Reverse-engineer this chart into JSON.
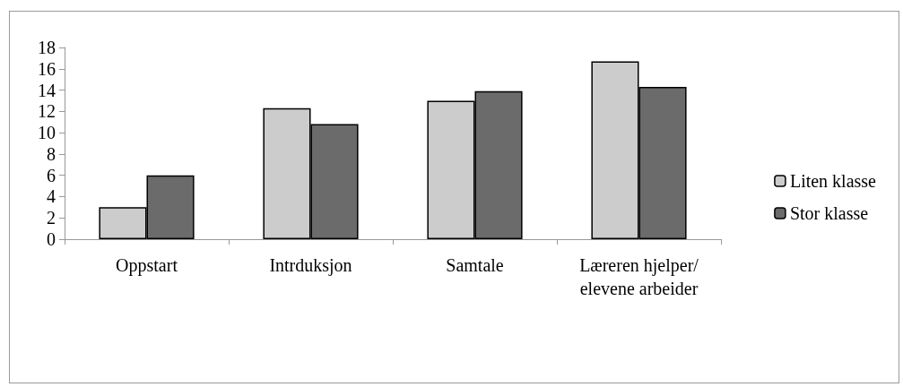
{
  "chart_data": {
    "type": "bar",
    "categories": [
      "Oppstart",
      "Intrduksjon",
      "Samtale",
      "Læreren hjelper/\nelevene arbeider"
    ],
    "series": [
      {
        "name": "Liten klasse",
        "color": "#cccccc",
        "values": [
          3,
          12.3,
          13,
          16.7
        ]
      },
      {
        "name": "Stor klasse",
        "color": "#6b6b6b",
        "values": [
          6,
          10.8,
          13.9,
          14.3
        ]
      }
    ],
    "ylim": [
      0,
      18
    ],
    "yticks": [
      0,
      2,
      4,
      6,
      8,
      10,
      12,
      14,
      16,
      18
    ],
    "grid": false,
    "legend": "right"
  }
}
